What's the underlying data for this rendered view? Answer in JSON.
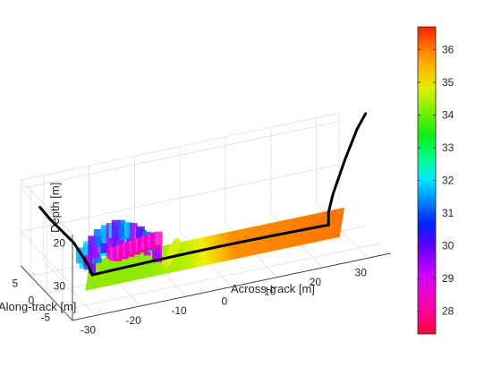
{
  "chart_data": {
    "type": "surface3d",
    "title": "",
    "xlabel": "Across-track [m]",
    "ylabel": "Along-track [m]",
    "zlabel": "Depth [m]",
    "xticks": [
      "-30",
      "-20",
      "-10",
      "0",
      "10",
      "20",
      "30"
    ],
    "yticks": [
      "5",
      "0",
      "-5"
    ],
    "zticks": [
      "20",
      "30"
    ],
    "xlim": [
      -35,
      35
    ],
    "ylim": [
      -8,
      8
    ],
    "zlim": [
      18,
      38
    ],
    "z_reversed": true,
    "grid": true,
    "colorbar": {
      "colormap": "hsv",
      "range": [
        27.3,
        36.7
      ],
      "ticks": [
        "28",
        "29",
        "30",
        "31",
        "32",
        "33",
        "34",
        "35",
        "36"
      ],
      "location": "right"
    },
    "surface_color_by_across_track": [
      {
        "x": -26,
        "depth": 34
      },
      {
        "x": -21,
        "depth": 33
      },
      {
        "x": -16,
        "depth": 31
      },
      {
        "x": -12,
        "depth": 28
      },
      {
        "x": -7,
        "depth": 34.5
      },
      {
        "x": 0,
        "depth": 36
      },
      {
        "x": 10,
        "depth": 36
      },
      {
        "x": 20,
        "depth": 35.5
      },
      {
        "x": 28,
        "depth": 35
      }
    ]
  }
}
